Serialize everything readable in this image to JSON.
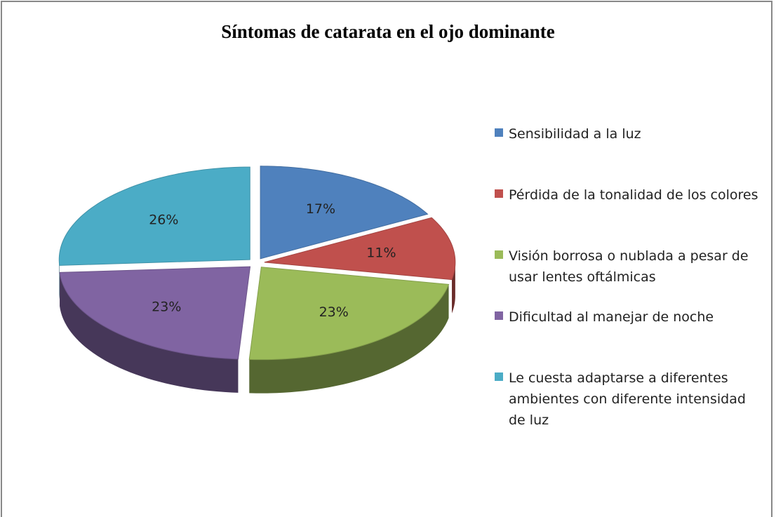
{
  "chart_data": {
    "type": "pie3d",
    "title": "Síntomas de catarata en el ojo dominante",
    "categories": [
      "Sensibilidad a la luz",
      "Pérdida de la tonalidad de los colores",
      "Visión borrosa o nublada a pesar de usar lentes oftálmicas",
      "Dificultad al manejar de noche",
      "Le cuesta adaptarse a diferentes ambientes con diferente intensidad de luz"
    ],
    "values": [
      17,
      11,
      23,
      23,
      26
    ],
    "value_labels": [
      "17%",
      "11%",
      "23%",
      "23%",
      "26%"
    ],
    "colors": [
      "#4f81bd",
      "#c0504d",
      "#9bbb59",
      "#8064a2",
      "#4bacc6"
    ],
    "legend": "right"
  }
}
